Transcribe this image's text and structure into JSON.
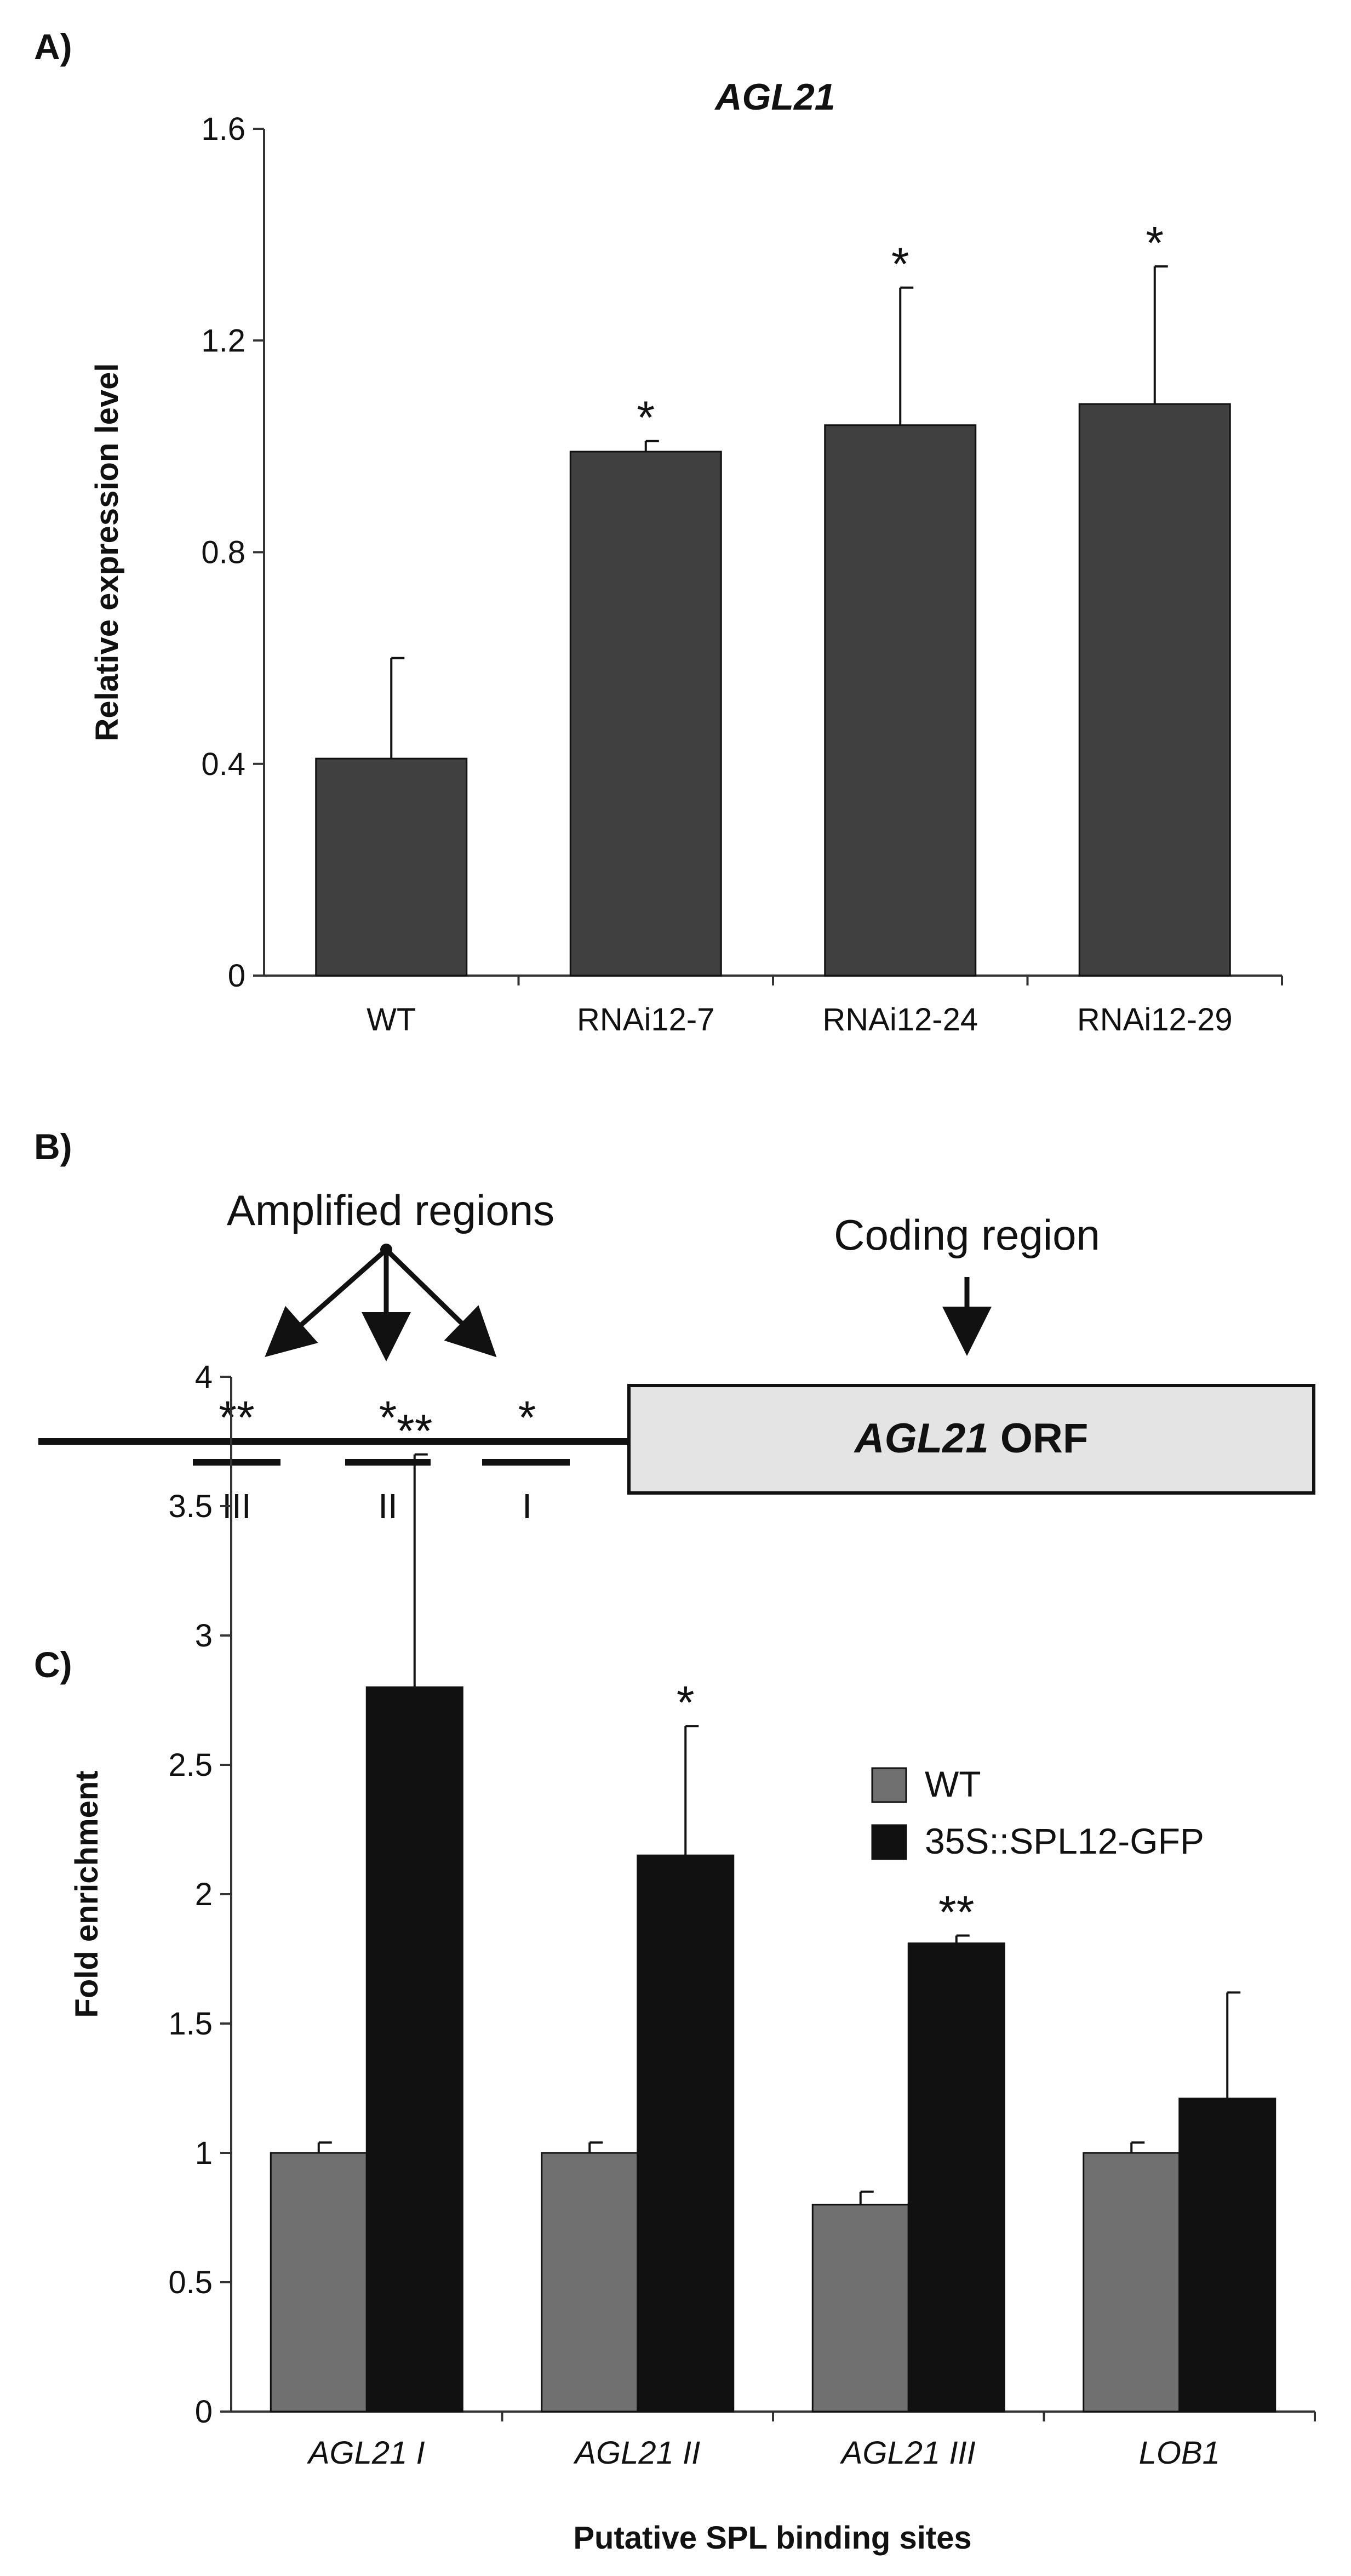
{
  "panels": {
    "a": "A)",
    "b": "B)",
    "c": "C)"
  },
  "chart_data": [
    {
      "type": "bar",
      "title": "AGL21",
      "ylabel": "Relative expression level",
      "xlabel": "",
      "ylim": [
        0,
        1.6
      ],
      "yticks": [
        "0",
        "0.4",
        "0.8",
        "1.2",
        "1.6"
      ],
      "yticks_values": [
        0,
        0.4,
        0.8,
        1.2,
        1.6
      ],
      "categories": [
        "WT",
        "RNAi12-7",
        "RNAi12-24",
        "RNAi12-29"
      ],
      "series": [
        {
          "values": [
            0.41,
            0.99,
            1.04,
            1.08
          ],
          "errors": [
            0.19,
            0.02,
            0.26,
            0.26
          ],
          "significance": [
            "",
            "*",
            "*",
            "*"
          ],
          "color": "#404040"
        }
      ],
      "grid": false
    },
    {
      "type": "bar",
      "title": "",
      "ylabel": "Fold enrichment",
      "xlabel": "Putative SPL binding sites",
      "ylim": [
        0,
        4
      ],
      "yticks": [
        "0",
        "0.5",
        "1",
        "1.5",
        "2",
        "2.5",
        "3",
        "3.5",
        "4"
      ],
      "yticks_values": [
        0,
        0.5,
        1,
        1.5,
        2,
        2.5,
        3,
        3.5,
        4
      ],
      "categories": [
        "AGL21 I",
        "AGL21 II",
        "AGL21 III",
        "LOB1"
      ],
      "series": [
        {
          "name": "WT",
          "values": [
            1.0,
            1.0,
            0.8,
            1.0
          ],
          "errors": [
            0.04,
            0.04,
            0.05,
            0.04
          ],
          "significance": [
            "",
            "",
            "",
            ""
          ],
          "color": "#707070"
        },
        {
          "name": "35S::SPL12-GFP",
          "values": [
            2.8,
            2.15,
            1.81,
            1.21
          ],
          "errors": [
            0.9,
            0.5,
            0.03,
            0.41
          ],
          "significance": [
            "**",
            "*",
            "**",
            ""
          ],
          "color": "#111111"
        }
      ],
      "legend": "top-right",
      "grid": false
    }
  ],
  "diagram": {
    "amplified_label": "Amplified regions",
    "coding_label": "Coding region",
    "orf_gene": "AGL21",
    "orf_suffix": "ORF",
    "regions": [
      {
        "name": "III",
        "stars": "**"
      },
      {
        "name": "II",
        "stars": "*"
      },
      {
        "name": "I",
        "stars": "*"
      }
    ]
  }
}
